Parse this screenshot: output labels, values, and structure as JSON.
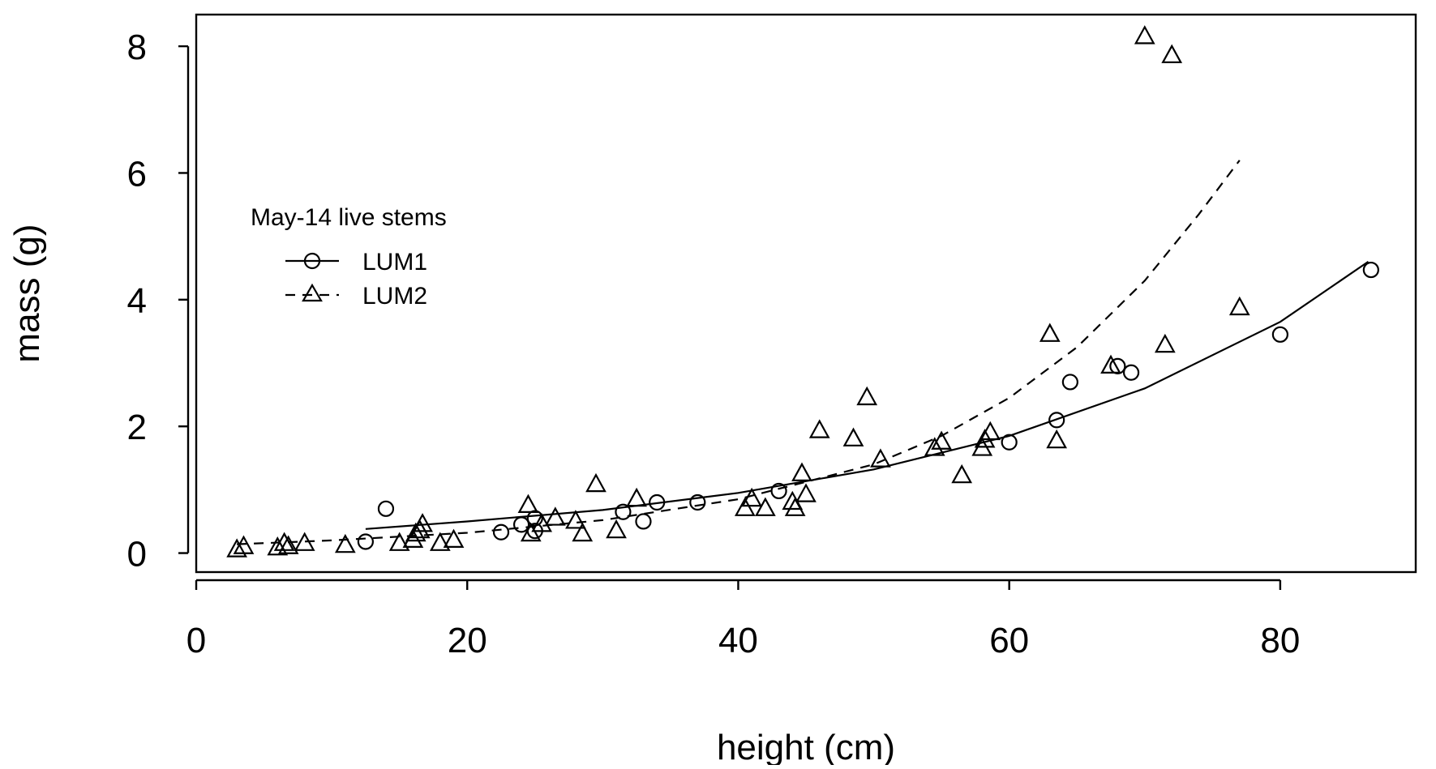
{
  "chart_data": {
    "type": "scatter",
    "title": "",
    "xlabel": "height (cm)",
    "ylabel": "mass (g)",
    "xlim": [
      0,
      90
    ],
    "ylim": [
      -0.3,
      8.5
    ],
    "xticks": [
      0,
      20,
      40,
      60,
      80
    ],
    "yticks": [
      0,
      2,
      4,
      6,
      8
    ],
    "grid": false,
    "legend": {
      "title": "May-14 live stems",
      "placement": "center-left"
    },
    "series": [
      {
        "name": "LUM1",
        "marker": "circle",
        "line_style": "solid",
        "points": [
          [
            12.5,
            0.18
          ],
          [
            14,
            0.7
          ],
          [
            22.5,
            0.33
          ],
          [
            24,
            0.45
          ],
          [
            25,
            0.35
          ],
          [
            25,
            0.55
          ],
          [
            31.5,
            0.65
          ],
          [
            33,
            0.5
          ],
          [
            34,
            0.8
          ],
          [
            37,
            0.8
          ],
          [
            43,
            0.98
          ],
          [
            60,
            1.75
          ],
          [
            63.5,
            2.1
          ],
          [
            64.5,
            2.7
          ],
          [
            68,
            2.95
          ],
          [
            69,
            2.85
          ],
          [
            80,
            3.45
          ],
          [
            86.7,
            4.47
          ]
        ],
        "fit": [
          [
            12.5,
            0.38
          ],
          [
            20,
            0.5
          ],
          [
            30,
            0.68
          ],
          [
            40,
            0.95
          ],
          [
            50,
            1.32
          ],
          [
            60,
            1.85
          ],
          [
            70,
            2.6
          ],
          [
            80,
            3.65
          ],
          [
            86.5,
            4.6
          ]
        ]
      },
      {
        "name": "LUM2",
        "marker": "triangle",
        "line_style": "dashed",
        "points": [
          [
            3,
            0.05
          ],
          [
            3.5,
            0.1
          ],
          [
            6,
            0.08
          ],
          [
            6.5,
            0.15
          ],
          [
            6.8,
            0.1
          ],
          [
            8,
            0.15
          ],
          [
            11,
            0.12
          ],
          [
            15,
            0.15
          ],
          [
            16,
            0.2
          ],
          [
            16.2,
            0.3
          ],
          [
            16.5,
            0.35
          ],
          [
            16.7,
            0.45
          ],
          [
            18,
            0.15
          ],
          [
            19,
            0.2
          ],
          [
            24.5,
            0.75
          ],
          [
            24.7,
            0.3
          ],
          [
            25.5,
            0.45
          ],
          [
            26.5,
            0.55
          ],
          [
            28,
            0.5
          ],
          [
            28.5,
            0.3
          ],
          [
            29.5,
            1.08
          ],
          [
            31,
            0.35
          ],
          [
            32.5,
            0.85
          ],
          [
            40.5,
            0.7
          ],
          [
            41,
            0.85
          ],
          [
            42,
            0.7
          ],
          [
            44,
            0.8
          ],
          [
            44.2,
            0.7
          ],
          [
            44.7,
            1.25
          ],
          [
            45,
            0.92
          ],
          [
            46,
            1.93
          ],
          [
            48.5,
            1.8
          ],
          [
            49.5,
            2.45
          ],
          [
            50.5,
            1.47
          ],
          [
            54.5,
            1.65
          ],
          [
            55,
            1.75
          ],
          [
            56.5,
            1.22
          ],
          [
            58,
            1.65
          ],
          [
            58.2,
            1.78
          ],
          [
            58.6,
            1.9
          ],
          [
            63,
            3.45
          ],
          [
            63.5,
            1.77
          ],
          [
            67.5,
            2.95
          ],
          [
            70,
            8.15
          ],
          [
            71.5,
            3.28
          ],
          [
            72,
            7.85
          ],
          [
            77,
            3.87
          ]
        ],
        "fit": [
          [
            3,
            0.14
          ],
          [
            10,
            0.2
          ],
          [
            20,
            0.32
          ],
          [
            30,
            0.52
          ],
          [
            40,
            0.85
          ],
          [
            50,
            1.4
          ],
          [
            55,
            1.85
          ],
          [
            60,
            2.45
          ],
          [
            65,
            3.25
          ],
          [
            70,
            4.3
          ],
          [
            74,
            5.35
          ],
          [
            77,
            6.2
          ]
        ]
      }
    ]
  }
}
